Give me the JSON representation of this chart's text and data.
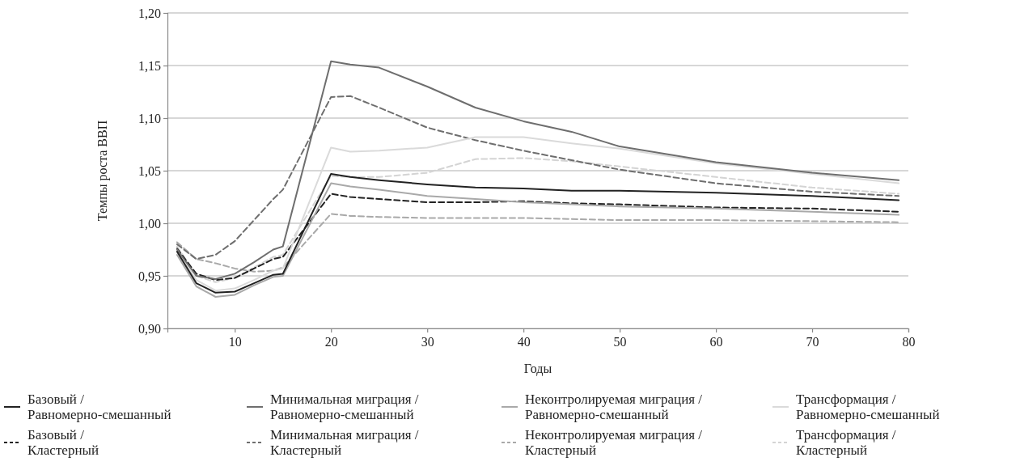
{
  "chart_data": {
    "type": "line",
    "xlabel": "Годы",
    "ylabel": "Темпы роста ВВП",
    "x": [
      4,
      6,
      8,
      10,
      12,
      14,
      15,
      20,
      22,
      25,
      30,
      35,
      40,
      45,
      50,
      60,
      70,
      79
    ],
    "xlim": [
      3,
      80
    ],
    "xticks": [
      10,
      20,
      30,
      40,
      50,
      60,
      70,
      80
    ],
    "ylim": [
      0.9,
      1.2
    ],
    "yticks": [
      {
        "value": 0.9,
        "label": "0,90"
      },
      {
        "value": 0.95,
        "label": "0,95"
      },
      {
        "value": 1.0,
        "label": "1,00"
      },
      {
        "value": 1.05,
        "label": "1,05"
      },
      {
        "value": 1.1,
        "label": "1,10"
      },
      {
        "value": 1.15,
        "label": "1,15"
      },
      {
        "value": 1.2,
        "label": "1,20"
      }
    ],
    "grid": "y",
    "legend": "bottom",
    "marker": "none",
    "series": [
      {
        "name": "Базовый / Равномерно-смешанный",
        "color": "#222222",
        "line_style": "solid",
        "values": [
          0.973,
          0.943,
          0.934,
          0.935,
          0.943,
          0.951,
          0.952,
          1.047,
          1.044,
          1.041,
          1.037,
          1.034,
          1.033,
          1.031,
          1.031,
          1.029,
          1.026,
          1.022
        ]
      },
      {
        "name": "Минимальная миграция / Равномерно-смешанный",
        "color": "#6e6e6e",
        "line_style": "solid",
        "values": [
          0.975,
          0.95,
          0.947,
          0.952,
          0.963,
          0.975,
          0.978,
          1.154,
          1.151,
          1.148,
          1.13,
          1.11,
          1.097,
          1.087,
          1.073,
          1.058,
          1.048,
          1.041
        ]
      },
      {
        "name": "Неконтролируемая миграция / Равномерно-смешанный",
        "color": "#a9a9a9",
        "line_style": "solid",
        "values": [
          0.97,
          0.94,
          0.93,
          0.932,
          0.941,
          0.949,
          0.95,
          1.038,
          1.035,
          1.032,
          1.026,
          1.023,
          1.02,
          1.018,
          1.016,
          1.014,
          1.011,
          1.008
        ]
      },
      {
        "name": "Трансформация / Равномерно-смешанный",
        "color": "#dadada",
        "line_style": "solid",
        "values": [
          0.975,
          0.946,
          0.936,
          0.938,
          0.946,
          0.955,
          0.957,
          1.072,
          1.068,
          1.069,
          1.072,
          1.082,
          1.082,
          1.076,
          1.071,
          1.057,
          1.047,
          1.038
        ]
      },
      {
        "name": "Базовый / Кластерный",
        "color": "#222222",
        "line_style": "dashed",
        "values": [
          0.976,
          0.952,
          0.946,
          0.948,
          0.957,
          0.966,
          0.968,
          1.028,
          1.025,
          1.023,
          1.02,
          1.02,
          1.021,
          1.019,
          1.018,
          1.015,
          1.014,
          1.011
        ]
      },
      {
        "name": "Минимальная миграция / Кластерный",
        "color": "#6e6e6e",
        "line_style": "dashed",
        "values": [
          0.98,
          0.966,
          0.97,
          0.983,
          1.003,
          1.023,
          1.032,
          1.12,
          1.121,
          1.11,
          1.091,
          1.079,
          1.069,
          1.06,
          1.051,
          1.038,
          1.03,
          1.026
        ]
      },
      {
        "name": "Неконтролируемая миграция / Кластерный",
        "color": "#a9a9a9",
        "line_style": "dashed",
        "values": [
          0.982,
          0.966,
          0.962,
          0.957,
          0.954,
          0.955,
          0.958,
          1.009,
          1.007,
          1.006,
          1.005,
          1.005,
          1.005,
          1.004,
          1.003,
          1.003,
          1.002,
          1.001
        ]
      },
      {
        "name": "Трансформация / Кластерный",
        "color": "#d4d4d4",
        "line_style": "dashed",
        "values": [
          0.978,
          0.95,
          0.944,
          0.948,
          0.958,
          0.968,
          0.97,
          1.045,
          1.044,
          1.044,
          1.048,
          1.061,
          1.062,
          1.059,
          1.054,
          1.044,
          1.034,
          1.028
        ]
      }
    ]
  }
}
